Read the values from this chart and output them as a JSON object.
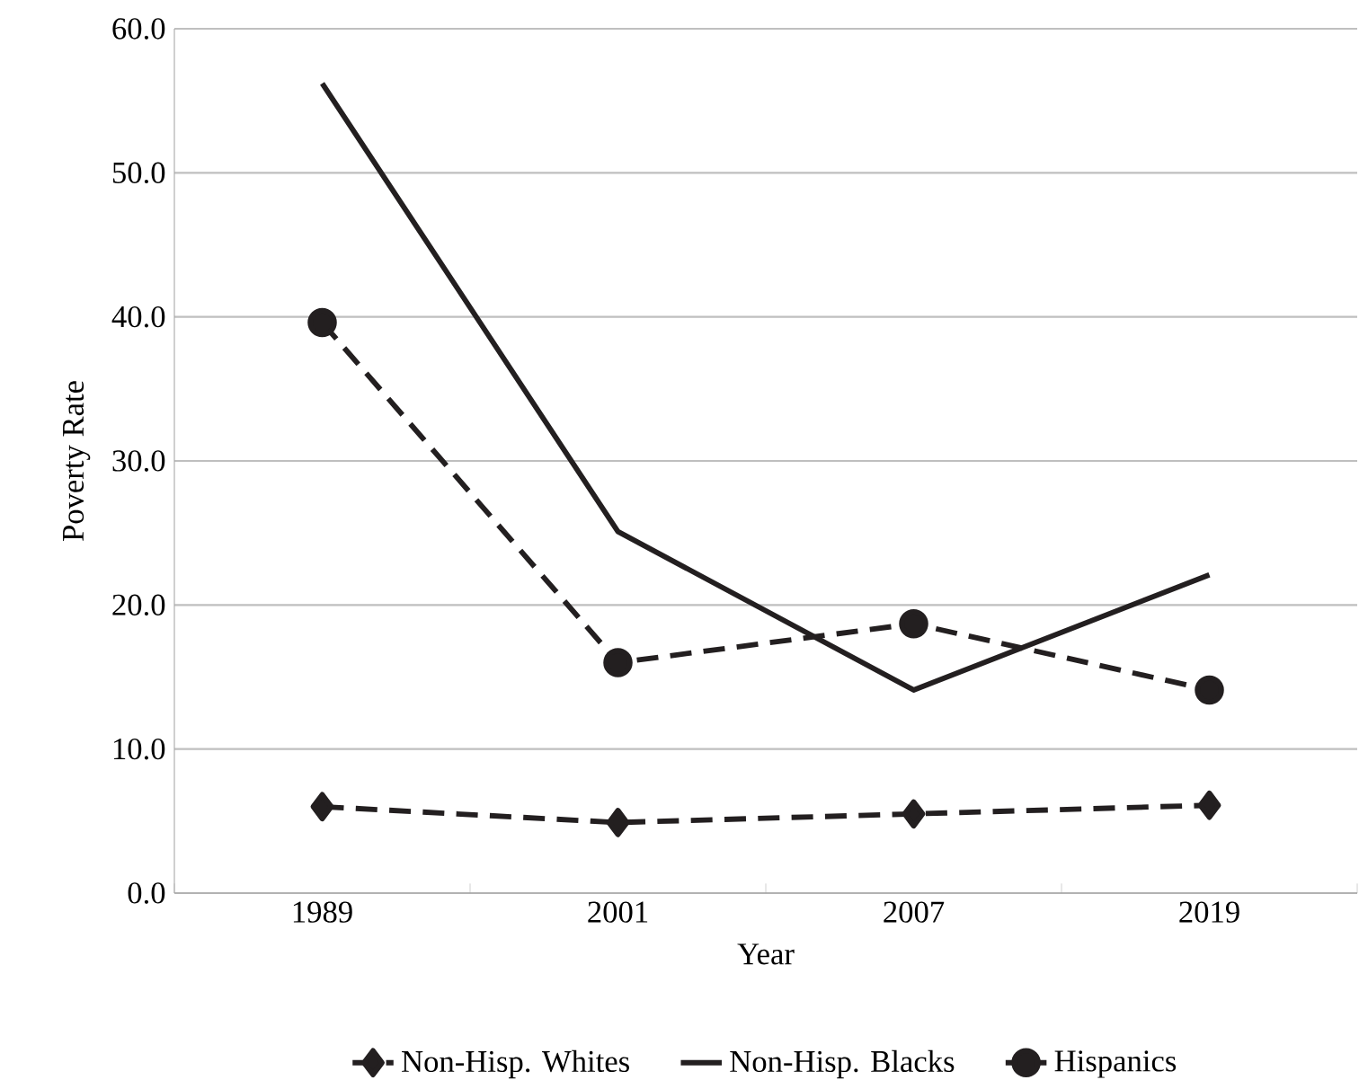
{
  "chart_data": {
    "type": "line",
    "xlabel": "Year",
    "ylabel": "Poverty Rate",
    "categories": [
      "1989",
      "2001",
      "2007",
      "2019"
    ],
    "series": [
      {
        "name": "Non-Hisp. Whites",
        "color": "#231f20",
        "values": [
          6.0,
          4.9,
          5.5,
          6.1
        ],
        "marker": "diamond",
        "line_style": "dashed"
      },
      {
        "name": "Non-Hisp. Blacks",
        "color": "#231f20",
        "values": [
          56.2,
          25.1,
          14.1,
          22.1
        ],
        "marker": "none",
        "line_style": "solid"
      },
      {
        "name": "Hispanics",
        "color": "#231f20",
        "values": [
          39.6,
          16.0,
          18.7,
          14.1
        ],
        "marker": "circle",
        "line_style": "dashed"
      }
    ],
    "ylim": [
      0,
      60
    ],
    "yticks": [
      {
        "value": 0,
        "label": "0.0"
      },
      {
        "value": 10,
        "label": "10.0"
      },
      {
        "value": 20,
        "label": "20.0"
      },
      {
        "value": 30,
        "label": "30.0"
      },
      {
        "value": 40,
        "label": "40.0"
      },
      {
        "value": 50,
        "label": "50.0"
      },
      {
        "value": 60,
        "label": "60.0"
      }
    ],
    "grid": "y",
    "legend": "bottom"
  }
}
